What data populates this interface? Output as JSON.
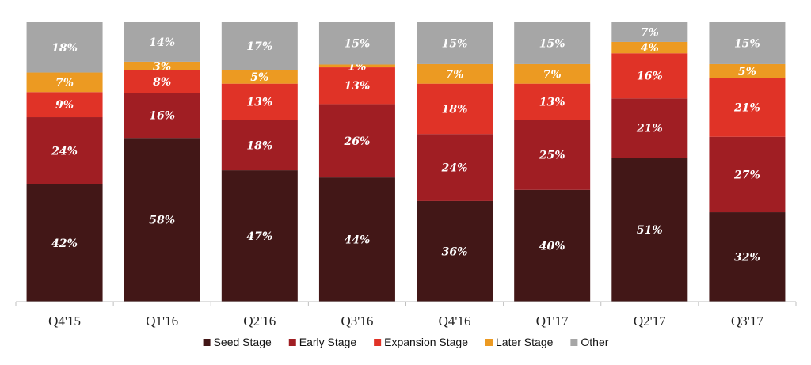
{
  "chart_data": {
    "type": "bar",
    "stacked": true,
    "normalized_percent": true,
    "categories": [
      "Q4'15",
      "Q1'16",
      "Q2'16",
      "Q3'16",
      "Q4'16",
      "Q1'17",
      "Q2'17",
      "Q3'17"
    ],
    "series": [
      {
        "name": "Seed Stage",
        "color": "#421717",
        "values": [
          42,
          58,
          47,
          44,
          36,
          40,
          51,
          32
        ]
      },
      {
        "name": "Early Stage",
        "color": "#a01e23",
        "values": [
          24,
          16,
          18,
          26,
          24,
          25,
          21,
          27
        ]
      },
      {
        "name": "Expansion Stage",
        "color": "#e03327",
        "values": [
          9,
          8,
          13,
          13,
          18,
          13,
          16,
          21
        ]
      },
      {
        "name": "Later Stage",
        "color": "#ec9a22",
        "values": [
          7,
          3,
          5,
          1,
          7,
          7,
          4,
          5
        ]
      },
      {
        "name": "Other",
        "color": "#a6a6a6",
        "values": [
          18,
          14,
          17,
          15,
          15,
          15,
          7,
          15
        ]
      }
    ],
    "value_suffix": "%",
    "title": "",
    "xlabel": "",
    "ylabel": "",
    "ylim": [
      0,
      100
    ],
    "grid": false,
    "legend": "bottom-center"
  }
}
